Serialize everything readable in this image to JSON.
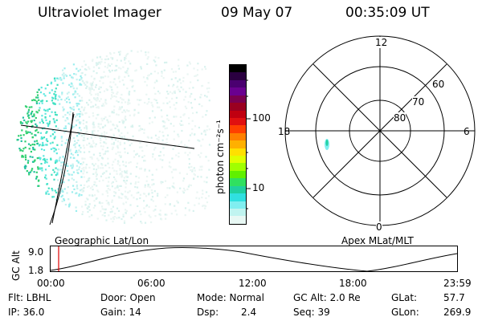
{
  "header": {
    "title": "Ultraviolet Imager",
    "date": "09 May 07",
    "time": "00:35:09 UT"
  },
  "colorbar": {
    "unit_label": "photon cm⁻²s⁻¹",
    "ticks": [
      "100",
      "10"
    ],
    "colors_top_to_bottom": [
      "#000000",
      "#2a0040",
      "#4a0070",
      "#6a0090",
      "#7a0050",
      "#9a0020",
      "#c00010",
      "#e01010",
      "#ff4000",
      "#ff8000",
      "#ffb000",
      "#ffe000",
      "#e0ff00",
      "#a0ff00",
      "#60f000",
      "#30e060",
      "#20d0a0",
      "#30e0e0",
      "#80eef0",
      "#c0f4f0",
      "#e8f8f4"
    ]
  },
  "polar_plot": {
    "top_label": "12",
    "left_label": "18",
    "right_label": "6",
    "bottom_label": "0",
    "ring_labels": [
      "60",
      "70",
      "80"
    ]
  },
  "timeline": {
    "left_caption": "Geographic Lat/Lon",
    "right_caption": "Apex MLat/MLT",
    "axis_title": "GC Alt",
    "y_ticks": [
      "9.0",
      "1.8"
    ],
    "x_ticks": [
      "00:00",
      "06:00",
      "12:00",
      "18:00",
      "23:59"
    ]
  },
  "info": {
    "row1": {
      "flt": "Flt: LBHL",
      "door": "Door: Open",
      "mode": "Mode: Normal",
      "gcalt": "GC Alt: 2.0 Re",
      "glat_label": "GLat:",
      "glat_value": "57.7"
    },
    "row2": {
      "ip": "IP: 36.0",
      "gain": "Gain: 14",
      "dsp_label": "Dsp:",
      "dsp_value": "2.4",
      "seq": "Seq: 39",
      "glon_label": "GLon:",
      "glon_value": "269.9"
    }
  },
  "colors": {
    "marker": "#e00000"
  }
}
